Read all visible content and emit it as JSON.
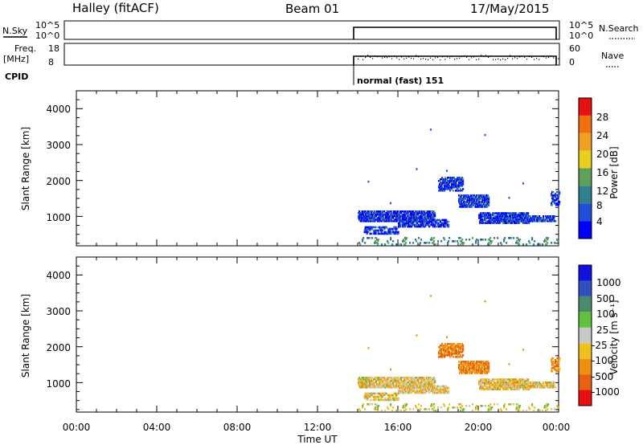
{
  "header": {
    "station": "Halley (fitACF)",
    "beam": "Beam 01",
    "date": "17/May/2015"
  },
  "strip": {
    "nsky_label": "N.Sky",
    "nsearch_label": "N.Search",
    "freq_label_1": "Freq.",
    "freq_label_2": "[MHz]",
    "nave_label": "Nave",
    "cpid_label": "CPID",
    "nsky_ticks": [
      "10^5",
      "10^0"
    ],
    "nsearch_ticks": [
      "10^5",
      "10^0"
    ],
    "freq_ticks": [
      "18",
      "8"
    ],
    "nave_ticks": [
      "60",
      "0"
    ],
    "cpid_text": "normal (fast) 151"
  },
  "chart_data": [
    {
      "type": "heatmap",
      "name": "power-panel",
      "ylabel": "Slant Range [km]",
      "yticks": [
        "4000",
        "3000",
        "2000",
        "1000"
      ],
      "ylim": [
        180,
        4500
      ],
      "xlim": [
        0,
        24
      ],
      "colorbar": {
        "label": "Power [dB]",
        "ticks": [
          "28",
          "24",
          "20",
          "16",
          "12",
          "8",
          "4"
        ],
        "colors": [
          "#0000ff",
          "#1f4fd8",
          "#2f7f8f",
          "#5fa05f",
          "#e8d020",
          "#f0a020",
          "#f07010",
          "#e81010"
        ]
      }
    },
    {
      "type": "heatmap",
      "name": "velocity-panel",
      "ylabel": "Slant Range [km]",
      "yticks": [
        "4000",
        "3000",
        "2000",
        "1000"
      ],
      "ylim": [
        180,
        4500
      ],
      "xlim": [
        0,
        24
      ],
      "xlabel": "Time UT",
      "xticks": [
        "00:00",
        "04:00",
        "08:00",
        "12:00",
        "16:00",
        "20:00",
        "00:00"
      ],
      "colorbar": {
        "label": "Velocity [m s⁻¹]",
        "ticks": [
          "1000",
          "500",
          "100",
          "25",
          "-25",
          "-100",
          "-500",
          "-1000"
        ],
        "colors": [
          "#1010e0",
          "#3050c0",
          "#4a8a6a",
          "#60c040",
          "#c8c8c8",
          "#f0c020",
          "#f09010",
          "#e86010",
          "#e81010"
        ]
      }
    }
  ]
}
